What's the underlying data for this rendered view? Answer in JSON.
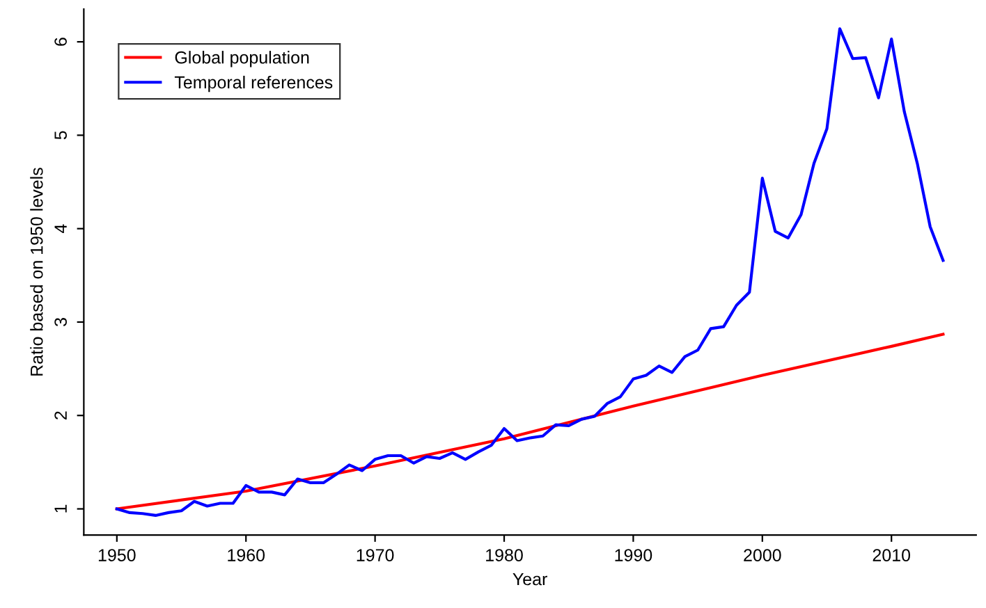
{
  "chart_data": {
    "type": "line",
    "xlabel": "Year",
    "ylabel": "Ratio based on 1950 levels",
    "xlim": [
      1947.44,
      2016.56
    ],
    "ylim": [
      0.72,
      6.35
    ],
    "xticks": [
      1950,
      1960,
      1970,
      1980,
      1990,
      2000,
      2010
    ],
    "yticks": [
      1,
      2,
      3,
      4,
      5,
      6
    ],
    "grid": false,
    "legend": "top left",
    "marker": "none",
    "line_style": "solid",
    "series": [
      {
        "name": "Global population",
        "color": "#ff0000",
        "x": [
          1950,
          1960,
          1970,
          1980,
          1990,
          2000,
          2010,
          2014
        ],
        "values": [
          1.0,
          1.19,
          1.46,
          1.75,
          2.1,
          2.43,
          2.74,
          2.87
        ]
      },
      {
        "name": "Temporal references",
        "color": "#0000ff",
        "x": [
          1950,
          1951,
          1952,
          1953,
          1954,
          1955,
          1956,
          1957,
          1958,
          1959,
          1960,
          1961,
          1962,
          1963,
          1964,
          1965,
          1966,
          1967,
          1968,
          1969,
          1970,
          1971,
          1972,
          1973,
          1974,
          1975,
          1976,
          1977,
          1978,
          1979,
          1980,
          1981,
          1982,
          1983,
          1984,
          1985,
          1986,
          1987,
          1988,
          1989,
          1990,
          1991,
          1992,
          1993,
          1994,
          1995,
          1996,
          1997,
          1998,
          1999,
          2000,
          2001,
          2002,
          2003,
          2004,
          2005,
          2006,
          2007,
          2008,
          2009,
          2010,
          2011,
          2012,
          2013,
          2014
        ],
        "values": [
          1.0,
          0.96,
          0.95,
          0.93,
          0.96,
          0.98,
          1.08,
          1.03,
          1.06,
          1.06,
          1.25,
          1.18,
          1.18,
          1.15,
          1.32,
          1.28,
          1.28,
          1.37,
          1.47,
          1.41,
          1.53,
          1.57,
          1.57,
          1.49,
          1.56,
          1.54,
          1.6,
          1.53,
          1.61,
          1.68,
          1.86,
          1.73,
          1.76,
          1.78,
          1.9,
          1.89,
          1.96,
          1.99,
          2.13,
          2.2,
          2.39,
          2.43,
          2.53,
          2.46,
          2.63,
          2.7,
          2.93,
          2.95,
          3.18,
          3.32,
          4.54,
          3.97,
          3.9,
          4.15,
          4.7,
          5.07,
          6.14,
          5.82,
          5.83,
          5.4,
          6.03,
          5.25,
          4.7,
          4.02,
          3.66
        ]
      }
    ]
  }
}
